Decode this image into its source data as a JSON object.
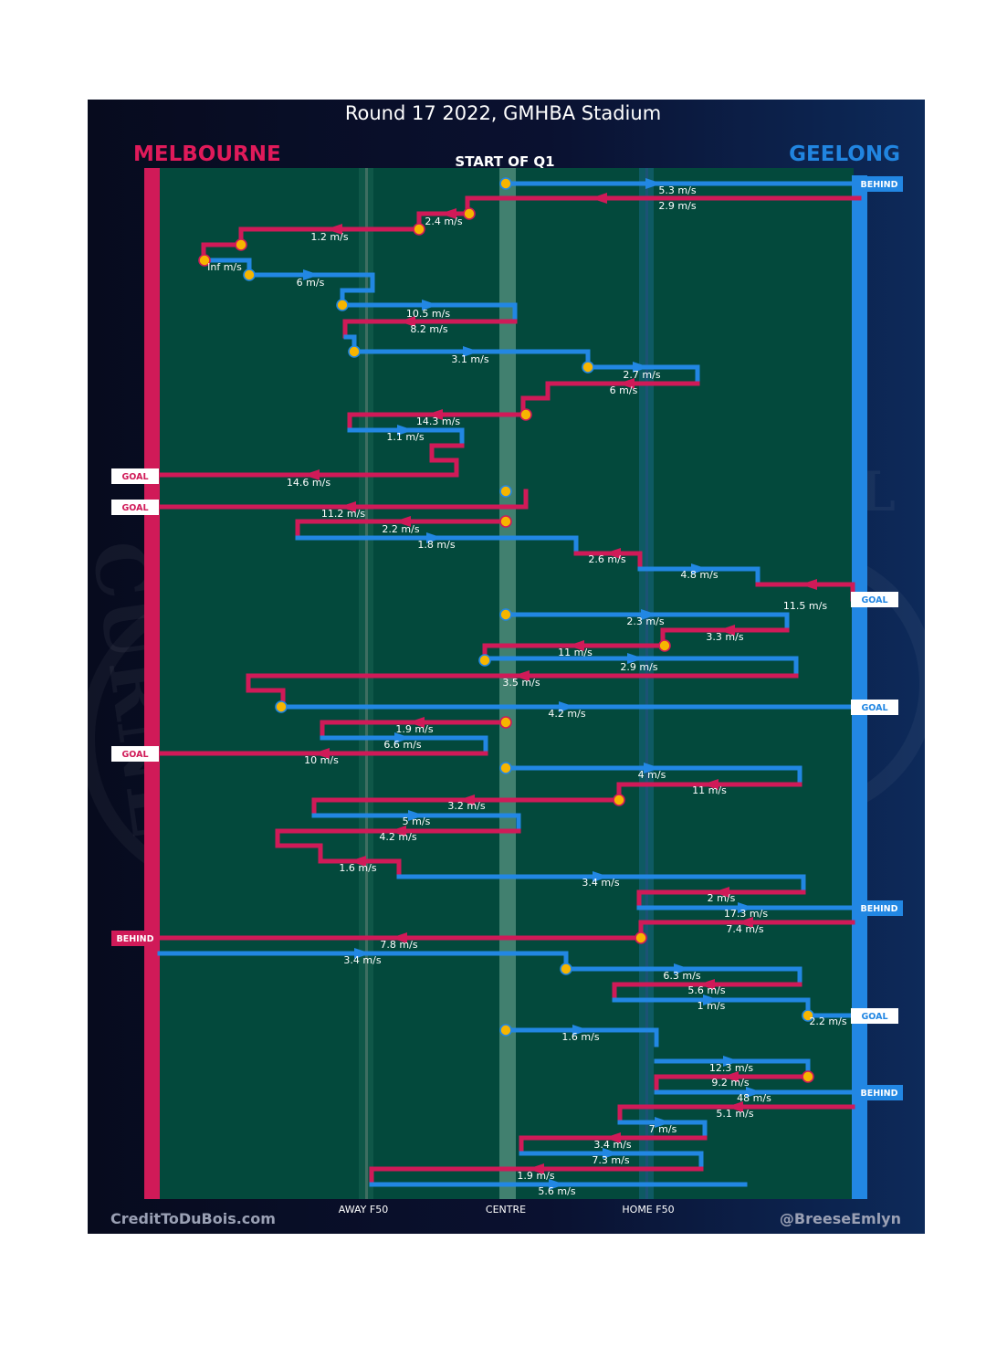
{
  "header": {
    "title": "Round 17 2022, GMHBA Stadium",
    "quarter_label": "START OF Q1"
  },
  "teams": {
    "away": {
      "name": "MELBOURNE",
      "color": "#e01a5a"
    },
    "home": {
      "name": "GEELONG",
      "color": "#2185e0"
    }
  },
  "axis": {
    "labels": [
      "AWAY F50",
      "CENTRE",
      "HOME F50"
    ]
  },
  "footer": {
    "left_credit": "CreditToDuBois.com",
    "right_credit": "@BreeseEmlyn"
  },
  "colors": {
    "field": "#03493c",
    "stoppage_marker": "#f7b500",
    "melbourne": "#d01a58",
    "geelong": "#2287e3"
  },
  "chart_data": {
    "type": "chain-flow",
    "field_positions": [
      "AWAY F50",
      "CENTRE",
      "HOME F50"
    ],
    "segments": [
      {
        "team": "GEE",
        "speed": "5.3 m/s",
        "end": "BEHIND"
      },
      {
        "team": "MEL",
        "speed": "2.9 m/s"
      },
      {
        "team": "MEL",
        "speed": "2.4 m/s"
      },
      {
        "team": "MEL",
        "speed": "1.2 m/s"
      },
      {
        "team": "MEL",
        "speed": "Inf m/s"
      },
      {
        "team": "GEE",
        "speed": "6 m/s"
      },
      {
        "team": "GEE",
        "speed": "10.5 m/s"
      },
      {
        "team": "MEL",
        "speed": "8.2 m/s"
      },
      {
        "team": "GEE",
        "speed": "3.1 m/s"
      },
      {
        "team": "GEE",
        "speed": "2.7 m/s"
      },
      {
        "team": "MEL",
        "speed": "6 m/s"
      },
      {
        "team": "MEL",
        "speed": "14.3 m/s"
      },
      {
        "team": "GEE",
        "speed": "1.1 m/s"
      },
      {
        "team": "MEL",
        "speed": "14.6 m/s",
        "end": "GOAL"
      },
      {
        "team": "MEL",
        "speed": "11.2 m/s",
        "end": "GOAL"
      },
      {
        "team": "MEL",
        "speed": "2.2 m/s"
      },
      {
        "team": "GEE",
        "speed": "1.8 m/s"
      },
      {
        "team": "MEL",
        "speed": "2.6 m/s"
      },
      {
        "team": "GEE",
        "speed": "4.8 m/s"
      },
      {
        "team": "MEL",
        "speed": "11.5 m/s"
      },
      {
        "team": "GEE",
        "speed": "2.3 m/s",
        "end": "GOAL"
      },
      {
        "team": "MEL",
        "speed": "3.3 m/s"
      },
      {
        "team": "MEL",
        "speed": "11 m/s"
      },
      {
        "team": "GEE",
        "speed": "2.9 m/s"
      },
      {
        "team": "MEL",
        "speed": "3.5 m/s"
      },
      {
        "team": "GEE",
        "speed": "4.2 m/s",
        "end": "GOAL"
      },
      {
        "team": "MEL",
        "speed": "1.9 m/s"
      },
      {
        "team": "GEE",
        "speed": "6.6 m/s"
      },
      {
        "team": "MEL",
        "speed": "10 m/s",
        "end": "GOAL"
      },
      {
        "team": "GEE",
        "speed": "4 m/s"
      },
      {
        "team": "MEL",
        "speed": "11 m/s"
      },
      {
        "team": "MEL",
        "speed": "3.2 m/s"
      },
      {
        "team": "GEE",
        "speed": "5 m/s"
      },
      {
        "team": "MEL",
        "speed": "4.2 m/s"
      },
      {
        "team": "MEL",
        "speed": "1.6 m/s"
      },
      {
        "team": "GEE",
        "speed": "3.4 m/s"
      },
      {
        "team": "MEL",
        "speed": "2 m/s"
      },
      {
        "team": "GEE",
        "speed": "17.3 m/s",
        "end": "BEHIND"
      },
      {
        "team": "MEL",
        "speed": "7.4 m/s"
      },
      {
        "team": "MEL",
        "speed": "7.8 m/s",
        "end": "BEHIND"
      },
      {
        "team": "GEE",
        "speed": "3.4 m/s"
      },
      {
        "team": "GEE",
        "speed": "6.3 m/s"
      },
      {
        "team": "MEL",
        "speed": "5.6 m/s"
      },
      {
        "team": "GEE",
        "speed": "1 m/s"
      },
      {
        "team": "GEE",
        "speed": "2.2 m/s",
        "end": "GOAL"
      },
      {
        "team": "GEE",
        "speed": "1.6 m/s"
      },
      {
        "team": "GEE",
        "speed": "12.3 m/s"
      },
      {
        "team": "MEL",
        "speed": "9.2 m/s"
      },
      {
        "team": "GEE",
        "speed": "48 m/s",
        "end": "BEHIND"
      },
      {
        "team": "MEL",
        "speed": "5.1 m/s"
      },
      {
        "team": "GEE",
        "speed": "7 m/s"
      },
      {
        "team": "MEL",
        "speed": "3.4 m/s"
      },
      {
        "team": "GEE",
        "speed": "7.3 m/s"
      },
      {
        "team": "MEL",
        "speed": "1.9 m/s"
      },
      {
        "team": "GEE",
        "speed": "5.6 m/s"
      }
    ],
    "score_tags": [
      {
        "side": "home",
        "text": "BEHIND"
      },
      {
        "side": "away",
        "text": "GOAL"
      },
      {
        "side": "away",
        "text": "GOAL"
      },
      {
        "side": "home",
        "text": "GOAL"
      },
      {
        "side": "home",
        "text": "GOAL"
      },
      {
        "side": "away",
        "text": "GOAL"
      },
      {
        "side": "home",
        "text": "BEHIND"
      },
      {
        "side": "away",
        "text": "BEHIND"
      },
      {
        "side": "home",
        "text": "GOAL"
      },
      {
        "side": "home",
        "text": "BEHIND"
      }
    ]
  }
}
